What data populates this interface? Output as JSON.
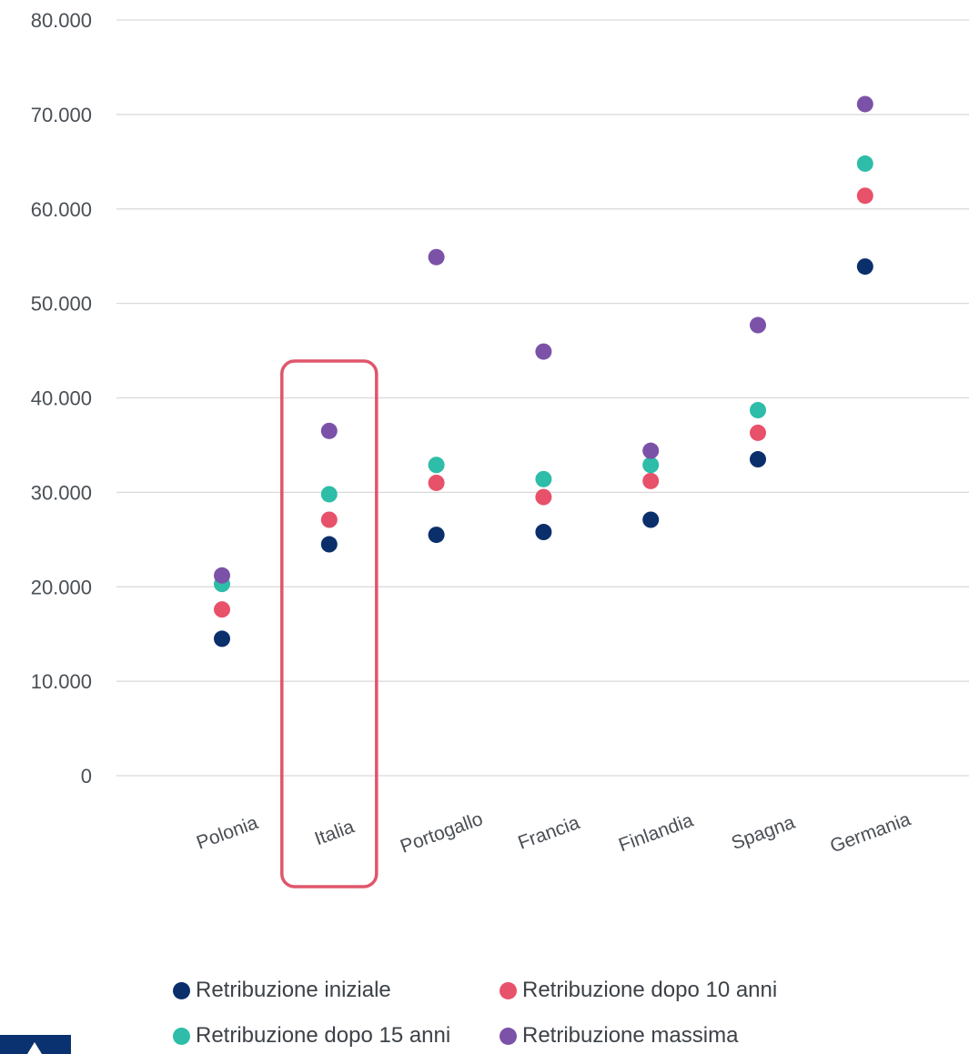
{
  "chart_data": {
    "type": "scatter",
    "title": "",
    "xlabel": "",
    "ylabel": "",
    "categories": [
      "Polonia",
      "Italia",
      "Portogallo",
      "Francia",
      "Finlandia",
      "Spagna",
      "Germania"
    ],
    "highlight_category": "Italia",
    "ylim": [
      0,
      80000
    ],
    "y_ticks": [
      0,
      10000,
      20000,
      30000,
      40000,
      50000,
      60000,
      70000,
      80000
    ],
    "y_tick_labels": [
      "0",
      "10.000",
      "20.000",
      "30.000",
      "40.000",
      "50.000",
      "60.000",
      "70.000",
      "80.000"
    ],
    "grid": true,
    "legend_position": "bottom",
    "series": [
      {
        "name": "Retribuzione iniziale",
        "color": "#0b2f6b",
        "values": [
          14500,
          24500,
          25500,
          25800,
          27100,
          33500,
          53900
        ]
      },
      {
        "name": "Retribuzione dopo 10 anni",
        "color": "#e8516a",
        "values": [
          17600,
          27100,
          31000,
          29500,
          31200,
          36300,
          61400
        ]
      },
      {
        "name": "Retribuzione dopo 15 anni",
        "color": "#2dbda8",
        "values": [
          20300,
          29800,
          32900,
          31400,
          32900,
          38700,
          64800
        ]
      },
      {
        "name": "Retribuzione massima",
        "color": "#7b52a8",
        "values": [
          21200,
          36500,
          54900,
          44900,
          34400,
          47700,
          71100
        ]
      }
    ]
  },
  "colors": {
    "highlight_border": "#e0566c",
    "grid": "#d9d9d9"
  }
}
